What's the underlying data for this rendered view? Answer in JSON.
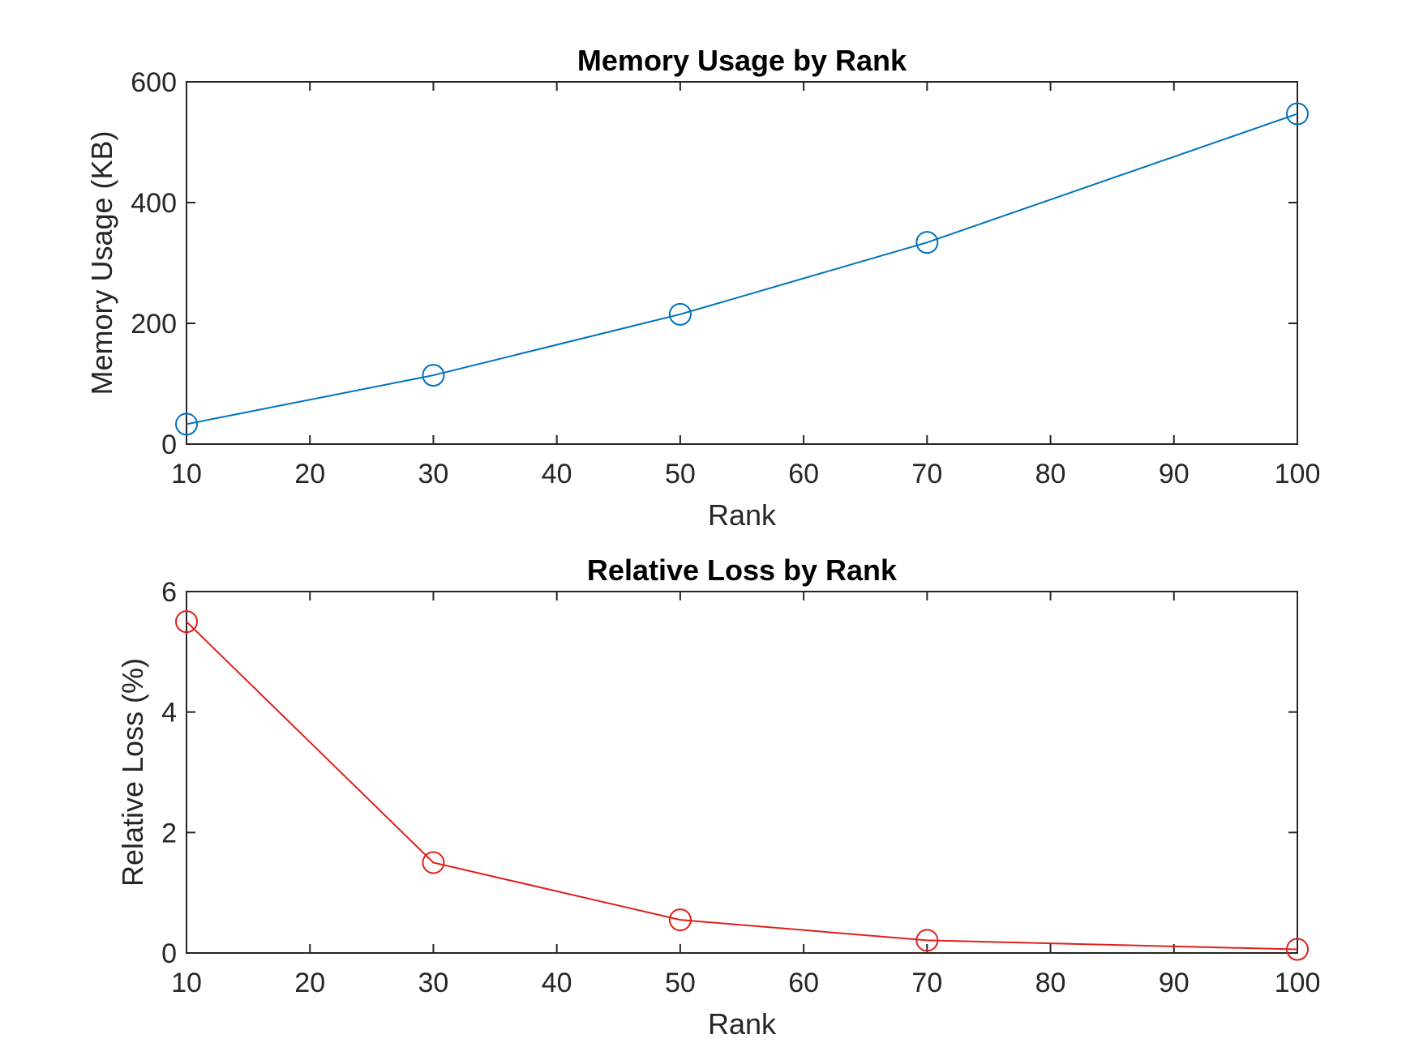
{
  "chart_data": [
    {
      "type": "line",
      "title": "Memory Usage by Rank",
      "xlabel": "Rank",
      "ylabel": "Memory Usage (KB)",
      "xlim": [
        10,
        100
      ],
      "ylim": [
        0,
        600
      ],
      "xticks": [
        10,
        20,
        30,
        40,
        50,
        60,
        70,
        80,
        90,
        100
      ],
      "yticks": [
        0,
        200,
        400,
        600
      ],
      "grid": false,
      "series": [
        {
          "color": "#0072BD",
          "marker": "circle",
          "x": [
            10,
            30,
            50,
            70,
            100
          ],
          "y": [
            33,
            114,
            215,
            334,
            547
          ]
        }
      ]
    },
    {
      "type": "line",
      "title": "Relative Loss by Rank",
      "xlabel": "Rank",
      "ylabel": "Relative Loss (%)",
      "xlim": [
        10,
        100
      ],
      "ylim": [
        0,
        6
      ],
      "xticks": [
        10,
        20,
        30,
        40,
        50,
        60,
        70,
        80,
        90,
        100
      ],
      "yticks": [
        0,
        2,
        4,
        6
      ],
      "grid": false,
      "series": [
        {
          "color": "#E0201B",
          "marker": "circle",
          "x": [
            10,
            30,
            50,
            70,
            100
          ],
          "y": [
            5.5,
            1.5,
            0.55,
            0.21,
            0.06
          ]
        }
      ]
    }
  ]
}
